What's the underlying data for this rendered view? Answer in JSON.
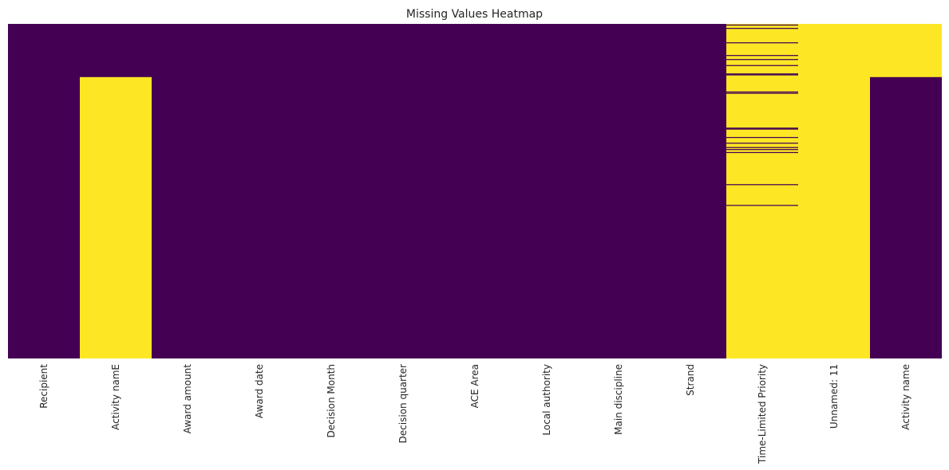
{
  "chart_data": {
    "type": "heatmap",
    "title": "Missing Values Heatmap",
    "xlabel": "",
    "ylabel": "",
    "categories": [
      "Recipient",
      "Activity namE",
      "Award amount",
      "Award date",
      "Decision Month",
      "Decision quarter",
      "ACE Area",
      "Local authority",
      "Main discipline",
      "Strand",
      "Time-Limited Priority",
      "Unnamed: 11",
      "Activity name"
    ],
    "row_range": [
      0,
      1
    ],
    "colorscale": {
      "present": "#440154",
      "missing": "#fde725"
    },
    "missing_fraction_ranges": [
      {
        "column": "Recipient",
        "ranges": []
      },
      {
        "column": "Activity namE",
        "ranges": [
          [
            0.159,
            1.0
          ]
        ]
      },
      {
        "column": "Award amount",
        "ranges": []
      },
      {
        "column": "Award date",
        "ranges": []
      },
      {
        "column": "Decision Month",
        "ranges": []
      },
      {
        "column": "Decision quarter",
        "ranges": []
      },
      {
        "column": "ACE Area",
        "ranges": []
      },
      {
        "column": "Local authority",
        "ranges": []
      },
      {
        "column": "Main discipline",
        "ranges": []
      },
      {
        "column": "Strand",
        "ranges": []
      },
      {
        "column": "Time-Limited Priority",
        "ranges": [
          [
            0.0,
            1.0
          ]
        ],
        "present_lines": [
          0.002,
          0.012,
          0.055,
          0.093,
          0.105,
          0.123,
          0.148,
          0.151,
          0.202,
          0.206,
          0.31,
          0.313,
          0.338,
          0.355,
          0.368,
          0.374,
          0.383,
          0.479,
          0.541
        ]
      },
      {
        "column": "Unnamed: 11",
        "ranges": [
          [
            0.0,
            1.0
          ]
        ]
      },
      {
        "column": "Activity name",
        "ranges": [
          [
            0.0,
            0.159
          ]
        ]
      }
    ]
  }
}
